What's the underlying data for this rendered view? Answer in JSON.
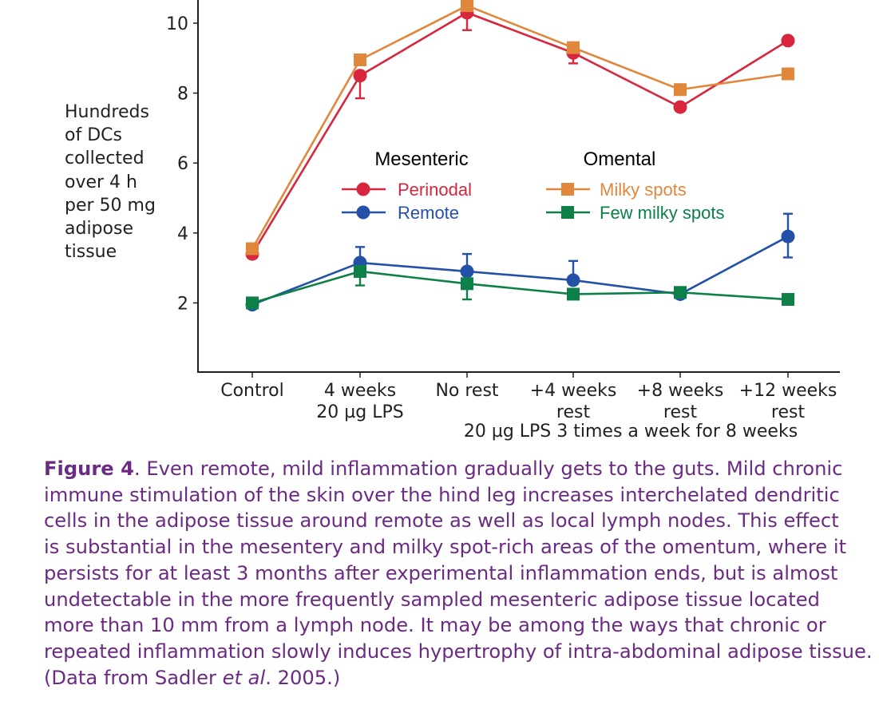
{
  "chart_data": {
    "type": "line",
    "y_axis_title_lines": [
      "Hundreds",
      "of DCs",
      "collected",
      "over 4 h",
      "per 50 mg",
      "adipose",
      "tissue"
    ],
    "ylim": [
      0,
      10.5
    ],
    "yticks": [
      2,
      4,
      6,
      8,
      10
    ],
    "categories": [
      {
        "lines": [
          "Control"
        ]
      },
      {
        "lines": [
          "4 weeks",
          "20 µg LPS"
        ]
      },
      {
        "lines": [
          "No rest"
        ]
      },
      {
        "lines": [
          "+4 weeks",
          "rest"
        ]
      },
      {
        "lines": [
          "+8 weeks",
          "rest"
        ]
      },
      {
        "lines": [
          "+12 weeks",
          "rest"
        ]
      }
    ],
    "group_label": "20 µg LPS 3 times a week for 8 weeks",
    "legend": {
      "groups": [
        {
          "title": "Mesenteric",
          "series": [
            "Perinodal",
            "Remote"
          ]
        },
        {
          "title": "Omental",
          "series": [
            "Milky spots",
            "Few milky spots"
          ]
        }
      ]
    },
    "series": [
      {
        "name": "Perinodal",
        "marker": "circle",
        "color": "#d7263d",
        "values": [
          3.4,
          8.5,
          10.3,
          9.15,
          7.6,
          9.5
        ],
        "err_up": [
          null,
          0,
          0,
          0,
          0,
          null
        ],
        "err_down": [
          null,
          0.65,
          0.5,
          0.3,
          null,
          null
        ]
      },
      {
        "name": "Milky spots",
        "marker": "square",
        "color": "#e0873c",
        "values": [
          3.55,
          8.95,
          10.5,
          9.3,
          8.1,
          8.55
        ],
        "err_up": [
          null,
          null,
          null,
          null,
          null,
          null
        ],
        "err_down": [
          null,
          null,
          null,
          null,
          null,
          null
        ]
      },
      {
        "name": "Remote",
        "marker": "circle",
        "color": "#2451a8",
        "values": [
          1.95,
          3.15,
          2.9,
          2.65,
          2.25,
          3.9
        ],
        "err_up": [
          null,
          0.45,
          0.5,
          0.55,
          null,
          0.65
        ],
        "err_down": [
          null,
          null,
          null,
          null,
          null,
          0.6
        ]
      },
      {
        "name": "Few milky spots",
        "marker": "square",
        "color": "#0d8048",
        "values": [
          2.0,
          2.9,
          2.55,
          2.25,
          2.3,
          2.1
        ],
        "err_up": [
          null,
          null,
          null,
          null,
          null,
          null
        ],
        "err_down": [
          null,
          0.4,
          0.45,
          null,
          null,
          null
        ]
      }
    ]
  },
  "caption": {
    "label": "Figure 4",
    "lines": [
      ". Even remote, mild inflammation gradually gets to the guts. Mild chronic",
      "immune stimulation of the skin over the hind leg increases interchelated dendritic",
      "cells in the adipose tissue around remote as well as local lymph nodes. This effect",
      "is substantial in the mesentery and milky spot-rich areas of the omentum, where it",
      "persists for at least 3 months after experimental inflammation ends, but is almost",
      "undetectable in the more frequently sampled mesenteric adipose tissue located",
      "more than 10 mm from a lymph node. It may be among the ways that chronic or",
      "repeated inflammation slowly induces hypertrophy of intra-abdominal adipose tissue."
    ],
    "source_before": "(Data from Sadler ",
    "source_etal": "et al",
    "source_after": ". 2005.)"
  }
}
